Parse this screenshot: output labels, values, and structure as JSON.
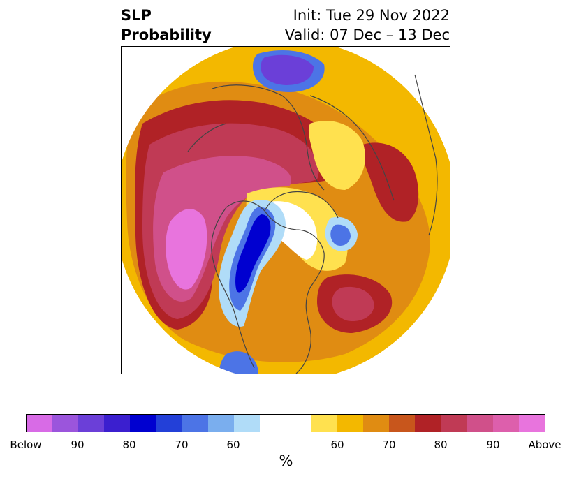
{
  "title": {
    "left_line1": "SLP",
    "left_line2": "Probability",
    "init": "Init: Tue 29 Nov 2022",
    "valid": "Valid: 07 Dec – 13 Dec"
  },
  "colorbar": {
    "colors": [
      "#d86be6",
      "#9b55dc",
      "#6b3fd8",
      "#3b1fcf",
      "#0000d0",
      "#2340d8",
      "#4c74e6",
      "#7aaeee",
      "#b0dcf8",
      "#ffffff",
      "#ffe14f",
      "#f3b800",
      "#e08c12",
      "#c8561c",
      "#b02226",
      "#c03a55",
      "#d0508a",
      "#dd5fac",
      "#e874dd"
    ],
    "tick_labels": [
      "Below",
      "90",
      "80",
      "70",
      "60",
      "60",
      "70",
      "80",
      "90",
      "Above"
    ],
    "unit": "%"
  },
  "map": {
    "projection": "north-polar-stereographic",
    "legend_meaning": "probability of below/above normal sea level pressure"
  }
}
